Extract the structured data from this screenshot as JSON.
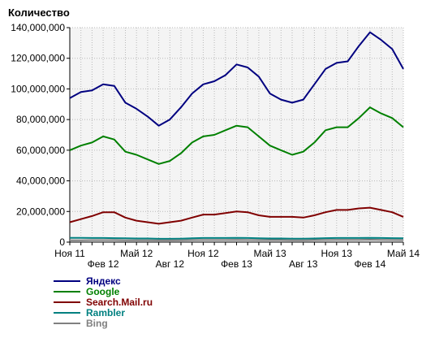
{
  "chart_data": {
    "type": "line",
    "ylabel": "Количество",
    "xlabel": "",
    "ylim": [
      0,
      140000000
    ],
    "y_ticks": [
      0,
      20000000,
      40000000,
      60000000,
      80000000,
      100000000,
      120000000,
      140000000
    ],
    "y_tick_labels": [
      "0",
      "20,000,000",
      "40,000,000",
      "60,000,000",
      "80,000,000",
      "100,000,000",
      "120,000,000",
      "140,000,000"
    ],
    "x": [
      "Ноя 11",
      "Дек 11",
      "Янв 12",
      "Фев 12",
      "Мар 12",
      "Апр 12",
      "Май 12",
      "Июн 12",
      "Июл 12",
      "Авг 12",
      "Сен 12",
      "Окт 12",
      "Ноя 12",
      "Дек 12",
      "Янв 13",
      "Фев 13",
      "Мар 13",
      "Апр 13",
      "Май 13",
      "Июн 13",
      "Июл 13",
      "Авг 13",
      "Сен 13",
      "Окт 13",
      "Ноя 13",
      "Дек 13",
      "Янв 14",
      "Фев 14",
      "Мар 14",
      "Апр 14",
      "Май 14"
    ],
    "x_tick_labels": [
      {
        "index": 0,
        "label": "Ноя 11",
        "row": 1
      },
      {
        "index": 3,
        "label": "Фев 12",
        "row": 2
      },
      {
        "index": 6,
        "label": "Май 12",
        "row": 1
      },
      {
        "index": 9,
        "label": "Авг 12",
        "row": 2
      },
      {
        "index": 12,
        "label": "Ноя 12",
        "row": 1
      },
      {
        "index": 15,
        "label": "Фев 13",
        "row": 2
      },
      {
        "index": 18,
        "label": "Май 13",
        "row": 1
      },
      {
        "index": 21,
        "label": "Авг 13",
        "row": 2
      },
      {
        "index": 24,
        "label": "Ноя 13",
        "row": 1
      },
      {
        "index": 27,
        "label": "Фев 14",
        "row": 2
      },
      {
        "index": 30,
        "label": "Май 14",
        "row": 1
      }
    ],
    "grid": true,
    "legend_position": "bottom-left",
    "series": [
      {
        "name": "Яндекс",
        "color": "#000080",
        "values": [
          94000000,
          98000000,
          99000000,
          103000000,
          102000000,
          91000000,
          87000000,
          82000000,
          76000000,
          80000000,
          88000000,
          97000000,
          103000000,
          105000000,
          109000000,
          116000000,
          114000000,
          108000000,
          97000000,
          93000000,
          91000000,
          93000000,
          103000000,
          113000000,
          117000000,
          118000000,
          128000000,
          137000000,
          132000000,
          126000000,
          113000000
        ]
      },
      {
        "name": "Google",
        "color": "#008000",
        "values": [
          60000000,
          63000000,
          65000000,
          69000000,
          67000000,
          59000000,
          57000000,
          54000000,
          51000000,
          53000000,
          58000000,
          65000000,
          69000000,
          70000000,
          73000000,
          76000000,
          75000000,
          69000000,
          63000000,
          60000000,
          57000000,
          59000000,
          65000000,
          73000000,
          75000000,
          75000000,
          81000000,
          88000000,
          84000000,
          81000000,
          75000000
        ]
      },
      {
        "name": "Search.Mail.ru",
        "color": "#800000",
        "values": [
          13000000,
          15000000,
          17000000,
          19500000,
          19500000,
          16000000,
          14000000,
          13000000,
          12000000,
          13000000,
          14000000,
          16000000,
          18000000,
          18000000,
          19000000,
          20000000,
          19500000,
          17500000,
          16500000,
          16500000,
          16500000,
          16000000,
          17500000,
          19500000,
          21000000,
          21000000,
          22000000,
          22500000,
          21000000,
          19500000,
          16500000
        ]
      },
      {
        "name": "Rambler",
        "color": "#008080",
        "values": [
          2800000,
          2800000,
          2700000,
          2700000,
          2600000,
          2500000,
          2400000,
          2400000,
          2200000,
          2200000,
          2300000,
          2500000,
          2700000,
          2700000,
          2700000,
          2800000,
          2700000,
          2500000,
          2400000,
          2400000,
          2300000,
          2300000,
          2400000,
          2600000,
          2700000,
          2700000,
          2700000,
          2800000,
          2700000,
          2600000,
          2500000
        ]
      },
      {
        "name": "Bing",
        "color": "#808080",
        "values": [
          1200000,
          1200000,
          1300000,
          1300000,
          1300000,
          1200000,
          1200000,
          1200000,
          1100000,
          1100000,
          1200000,
          1300000,
          1400000,
          1400000,
          1400000,
          1500000,
          1400000,
          1300000,
          1300000,
          1300000,
          1200000,
          1200000,
          1300000,
          1400000,
          1500000,
          1500000,
          1500000,
          1600000,
          1500000,
          1400000,
          1300000
        ]
      }
    ]
  }
}
